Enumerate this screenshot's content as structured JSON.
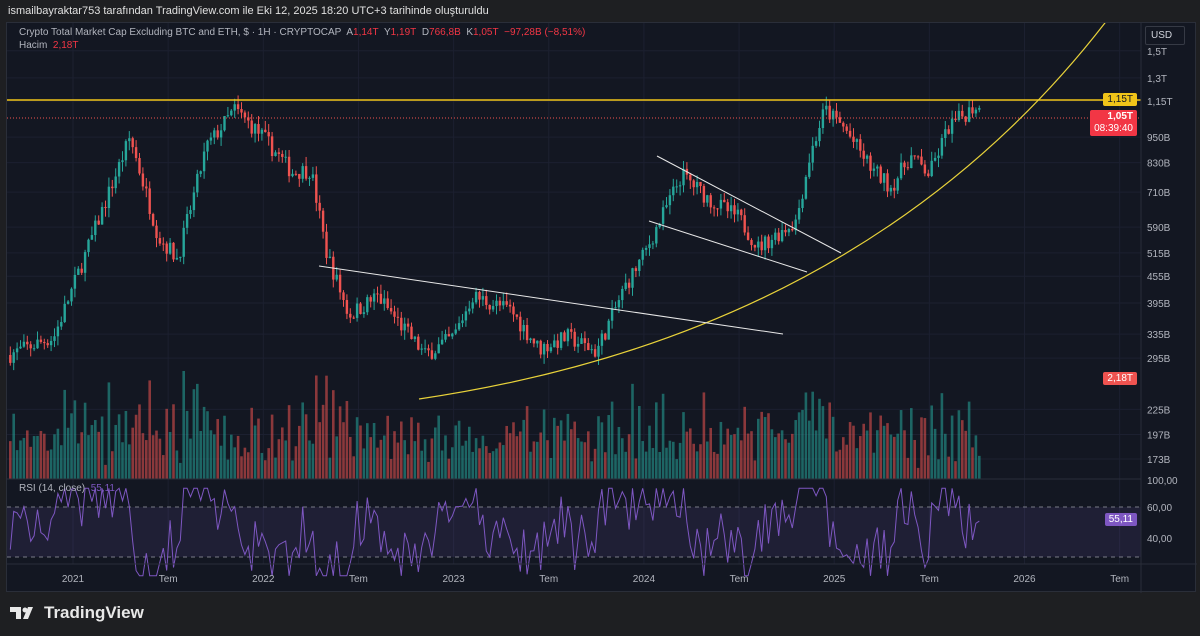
{
  "header": "ismailbayraktar753 tarafından TradingView.com ile Eki 12, 2025 18:20 UTC+3 tarihinde oluşturuldu",
  "legend": {
    "symbol": "Crypto Total Market Cap Excluding BTC and ETH, $ · 1H · CRYPTOCAP",
    "o_label": "A",
    "o": "1,14T",
    "h_label": "Y",
    "h": "1,19T",
    "l_label": "D",
    "l": "766,8B",
    "c_label": "K",
    "c": "1,05T",
    "change": "−97,28B (−8,51%)",
    "volume_label": "Hacim",
    "volume": "2,18T",
    "rsi_label": "RSI (14, close)",
    "rsi": "55,11"
  },
  "currency": "USD",
  "tags": {
    "level": "1,15T",
    "last": "1,05T",
    "countdown": "08:39:40",
    "volume": "2,18T",
    "rsi": "55,11"
  },
  "footer": {
    "brand": "TradingView"
  },
  "colors": {
    "up": "#26a69a",
    "down": "#ef5350",
    "level": "#f0c419",
    "rsi": "#7e57c2"
  },
  "chart_data": {
    "type": "candlestick",
    "title": "Crypto Total Market Cap Excluding BTC and ETH",
    "yscale": "log",
    "y_ticks": [
      "1,5T",
      "1,3T",
      "1,15T",
      "950B",
      "830B",
      "710B",
      "590B",
      "515B",
      "455B",
      "395B",
      "335B",
      "295B",
      "225B",
      "197B",
      "173B"
    ],
    "y_tick_values": [
      1500,
      1300,
      1150,
      950,
      830,
      710,
      590,
      515,
      455,
      395,
      335,
      295,
      225,
      197,
      173
    ],
    "x_ticks": [
      "2021",
      "Tem",
      "2022",
      "Tem",
      "2023",
      "Tem",
      "2024",
      "Tem",
      "2025",
      "Tem",
      "2026",
      "Tem"
    ],
    "x_tick_years": [
      2021,
      2021.5,
      2022,
      2022.5,
      2023,
      2023.5,
      2024,
      2024.5,
      2025,
      2025.5,
      2026,
      2026.5
    ],
    "close_path_billions": [
      [
        2020.66,
        300
      ],
      [
        2020.9,
        330
      ],
      [
        2021.1,
        560
      ],
      [
        2021.3,
        950
      ],
      [
        2021.45,
        560
      ],
      [
        2021.55,
        500
      ],
      [
        2021.7,
        900
      ],
      [
        2021.85,
        1100
      ],
      [
        2022.0,
        950
      ],
      [
        2022.15,
        790
      ],
      [
        2022.25,
        800
      ],
      [
        2022.33,
        520
      ],
      [
        2022.45,
        370
      ],
      [
        2022.6,
        410
      ],
      [
        2022.85,
        300
      ],
      [
        2023.0,
        330
      ],
      [
        2023.1,
        410
      ],
      [
        2023.3,
        380
      ],
      [
        2023.45,
        310
      ],
      [
        2023.6,
        330
      ],
      [
        2023.75,
        305
      ],
      [
        2023.9,
        430
      ],
      [
        2024.0,
        510
      ],
      [
        2024.2,
        780
      ],
      [
        2024.35,
        680
      ],
      [
        2024.5,
        620
      ],
      [
        2024.6,
        530
      ],
      [
        2024.8,
        610
      ],
      [
        2024.87,
        850
      ],
      [
        2024.95,
        1100
      ],
      [
        2025.05,
        1000
      ],
      [
        2025.2,
        800
      ],
      [
        2025.3,
        730
      ],
      [
        2025.4,
        860
      ],
      [
        2025.5,
        780
      ],
      [
        2025.6,
        1000
      ],
      [
        2025.75,
        1130
      ],
      [
        2025.78,
        1050
      ]
    ],
    "horizontal_level": 1150,
    "rsi_levels": [
      70,
      30
    ],
    "rsi_axis": [
      "100,00",
      "60,00",
      "40,00"
    ]
  }
}
